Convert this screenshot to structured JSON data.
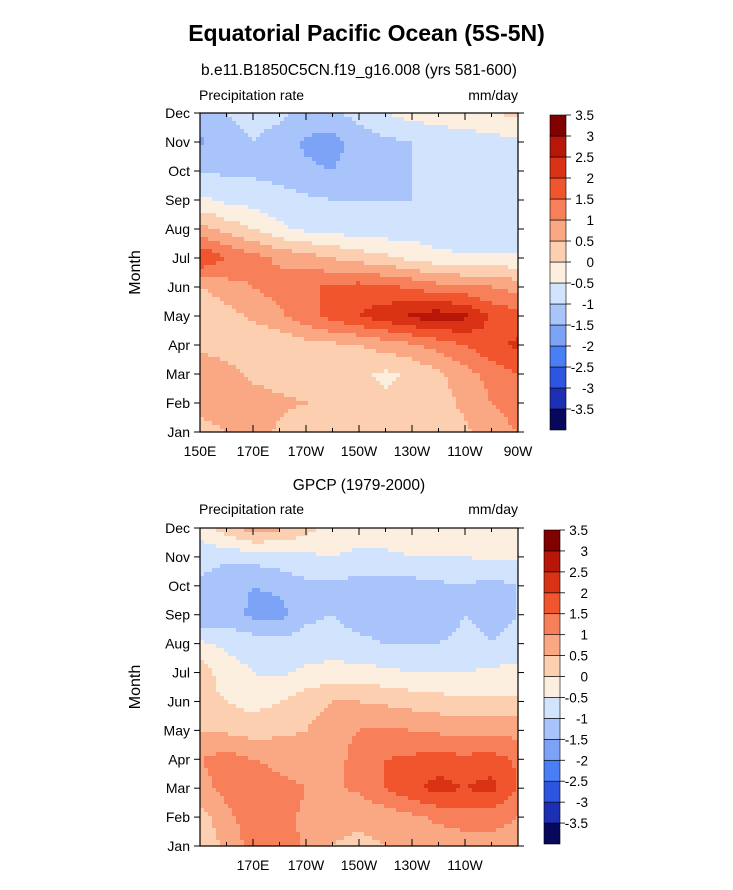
{
  "figure": {
    "title": "Equatorial Pacific Ocean (5S-5N)"
  },
  "colors": {
    "palette": [
      "#07075b",
      "#1c2fb5",
      "#2e55e0",
      "#4a7ef4",
      "#7da3f6",
      "#a9c4fb",
      "#d2e3fd",
      "#fdefdf",
      "#fccfb1",
      "#faa884",
      "#f77f59",
      "#f0552d",
      "#d93214",
      "#b81608",
      "#810000"
    ],
    "background": "#ffffff"
  },
  "chart_data": [
    {
      "type": "heatmap",
      "id": "model",
      "title": "b.e11.B1850C5CN.f19_g16.008 (yrs 581-600)",
      "left_string": "Precipitation rate",
      "right_string": "mm/day",
      "ylabel": "Month",
      "xlabel": "",
      "x_ticks": [
        "150E",
        "170E",
        "170W",
        "150W",
        "130W",
        "110W",
        "90W"
      ],
      "y_ticks": [
        "Jan",
        "Feb",
        "Mar",
        "Apr",
        "May",
        "Jun",
        "Jul",
        "Aug",
        "Sep",
        "Oct",
        "Nov",
        "Dec"
      ],
      "x": [
        150,
        160,
        170,
        180,
        190,
        200,
        210,
        220,
        230,
        240,
        250,
        260,
        270
      ],
      "xlim": [
        150,
        270
      ],
      "y": [
        1,
        2,
        3,
        4,
        5,
        6,
        7,
        8,
        9,
        10,
        11,
        12
      ],
      "values": [
        [
          0.2,
          0.5,
          0.8,
          0.4,
          0.2,
          0.2,
          0.2,
          0.3,
          0.3,
          0.3,
          0.4,
          0.8,
          1.0
        ],
        [
          0.8,
          0.9,
          0.7,
          0.6,
          0.5,
          0.3,
          0.1,
          0.1,
          0.2,
          0.3,
          0.6,
          1.0,
          1.2
        ],
        [
          0.9,
          0.7,
          0.4,
          0.3,
          0.3,
          0.2,
          0.1,
          -0.1,
          0.1,
          0.4,
          0.8,
          1.2,
          1.5
        ],
        [
          0.4,
          0.2,
          0.0,
          0.1,
          0.3,
          0.4,
          0.5,
          0.7,
          0.9,
          1.2,
          1.5,
          1.9,
          2.1
        ],
        [
          0.0,
          0.3,
          0.6,
          0.9,
          1.3,
          1.7,
          2.0,
          2.3,
          2.6,
          2.8,
          2.6,
          1.9,
          1.7
        ],
        [
          0.5,
          0.8,
          1.0,
          1.2,
          1.4,
          1.6,
          1.7,
          1.6,
          1.4,
          1.2,
          1.1,
          1.0,
          0.8
        ],
        [
          2.0,
          1.5,
          1.2,
          0.9,
          0.7,
          0.5,
          0.3,
          0.1,
          -0.1,
          -0.3,
          -0.4,
          -0.4,
          -0.4
        ],
        [
          0.7,
          0.3,
          0.0,
          -0.4,
          -0.6,
          -0.7,
          -0.8,
          -0.8,
          -0.8,
          -0.9,
          -1.0,
          -1.0,
          -1.0
        ],
        [
          -0.4,
          -0.6,
          -0.7,
          -0.8,
          -0.9,
          -1.0,
          -1.0,
          -1.0,
          -1.0,
          -1.0,
          -1.0,
          -1.0,
          -1.0
        ],
        [
          -1.0,
          -1.1,
          -1.1,
          -1.2,
          -1.4,
          -1.5,
          -1.2,
          -1.1,
          -1.0,
          -1.0,
          -0.9,
          -0.9,
          -0.8
        ],
        [
          -1.6,
          -1.2,
          -1.0,
          -1.2,
          -1.6,
          -1.7,
          -1.3,
          -1.1,
          -1.0,
          -0.9,
          -0.8,
          -0.7,
          -0.6
        ],
        [
          -1.2,
          -1.0,
          -0.8,
          -0.9,
          -1.1,
          -1.1,
          -0.8,
          -0.5,
          -0.3,
          -0.2,
          -0.1,
          0.0,
          0.1
        ]
      ],
      "levels": [
        -3.5,
        -3,
        -2.5,
        -2,
        -1.5,
        -1,
        -0.5,
        0,
        0.5,
        1,
        1.5,
        2,
        2.5,
        3,
        3.5
      ],
      "colorbar_labels": [
        "-3.5",
        "-3",
        "-2.5",
        "-2",
        "-1.5",
        "-1",
        "-0.5",
        "0",
        "0.5",
        "1",
        "1.5",
        "2",
        "2.5",
        "3",
        "3.5"
      ]
    },
    {
      "type": "heatmap",
      "id": "obs",
      "title": "GPCP (1979-2000)",
      "left_string": "Precipitation rate",
      "right_string": "mm/day",
      "ylabel": "Month",
      "xlabel": "",
      "x_ticks": [
        "170E",
        "170W",
        "150W",
        "130W",
        "110W"
      ],
      "y_ticks": [
        "Jan",
        "Feb",
        "Mar",
        "Apr",
        "May",
        "Jun",
        "Jul",
        "Aug",
        "Sep",
        "Oct",
        "Nov",
        "Dec"
      ],
      "x": [
        150,
        160,
        170,
        180,
        190,
        200,
        210,
        220,
        230,
        240,
        250,
        260,
        270
      ],
      "xlim": [
        150,
        270
      ],
      "y": [
        1,
        2,
        3,
        4,
        5,
        6,
        7,
        8,
        9,
        10,
        11,
        12
      ],
      "values": [
        [
          0.2,
          0.6,
          1.2,
          1.5,
          0.8,
          0.5,
          0.4,
          0.5,
          0.6,
          0.7,
          0.8,
          0.8,
          0.7
        ],
        [
          0.3,
          0.8,
          1.4,
          1.2,
          0.9,
          0.6,
          0.6,
          0.7,
          0.9,
          1.1,
          1.2,
          1.2,
          1.0
        ],
        [
          0.8,
          1.2,
          1.5,
          1.2,
          1.0,
          0.9,
          1.1,
          1.5,
          1.9,
          2.2,
          2.0,
          2.2,
          1.5
        ],
        [
          1.0,
          1.2,
          1.0,
          0.8,
          0.7,
          0.8,
          1.2,
          1.5,
          1.6,
          1.7,
          1.6,
          1.7,
          1.4
        ],
        [
          0.5,
          0.4,
          0.3,
          0.4,
          0.5,
          0.8,
          1.0,
          1.1,
          1.0,
          0.9,
          0.9,
          0.9,
          0.8
        ],
        [
          0.2,
          0.0,
          -0.2,
          0.0,
          0.3,
          0.5,
          0.5,
          0.4,
          0.3,
          0.2,
          0.1,
          0.1,
          0.1
        ],
        [
          0.3,
          -0.3,
          -0.5,
          -0.6,
          -0.4,
          -0.3,
          -0.3,
          -0.4,
          -0.5,
          -0.5,
          -0.5,
          -0.4,
          -0.3
        ],
        [
          -0.4,
          -0.6,
          -0.7,
          -0.8,
          -0.8,
          -0.8,
          -0.9,
          -1.0,
          -1.0,
          -1.0,
          -0.9,
          -1.0,
          -0.9
        ],
        [
          -1.5,
          -1.3,
          -1.6,
          -1.7,
          -1.1,
          -1.0,
          -1.2,
          -1.3,
          -1.3,
          -1.2,
          -1.0,
          -1.1,
          -1.0
        ],
        [
          -1.1,
          -1.3,
          -1.5,
          -1.4,
          -1.1,
          -1.1,
          -1.2,
          -1.2,
          -1.2,
          -1.1,
          -1.0,
          -1.2,
          -1.0
        ],
        [
          -0.8,
          -0.9,
          -0.8,
          -0.7,
          -0.6,
          -0.5,
          -0.6,
          -0.6,
          -0.5,
          -0.5,
          -0.5,
          -0.4,
          -0.4
        ],
        [
          -0.3,
          0.3,
          0.8,
          0.6,
          0.2,
          -0.2,
          -0.3,
          -0.2,
          -0.3,
          -0.2,
          -0.2,
          -0.2,
          -0.2
        ]
      ],
      "levels": [
        -3.5,
        -3,
        -2.5,
        -2,
        -1.5,
        -1,
        -0.5,
        0,
        0.5,
        1,
        1.5,
        2,
        2.5,
        3,
        3.5
      ],
      "colorbar_labels": [
        "-3.5",
        "-3",
        "-2.5",
        "-2",
        "-1.5",
        "-1",
        "-0.5",
        "0",
        "0.5",
        "1",
        "1.5",
        "2",
        "2.5",
        "3",
        "3.5"
      ]
    }
  ]
}
